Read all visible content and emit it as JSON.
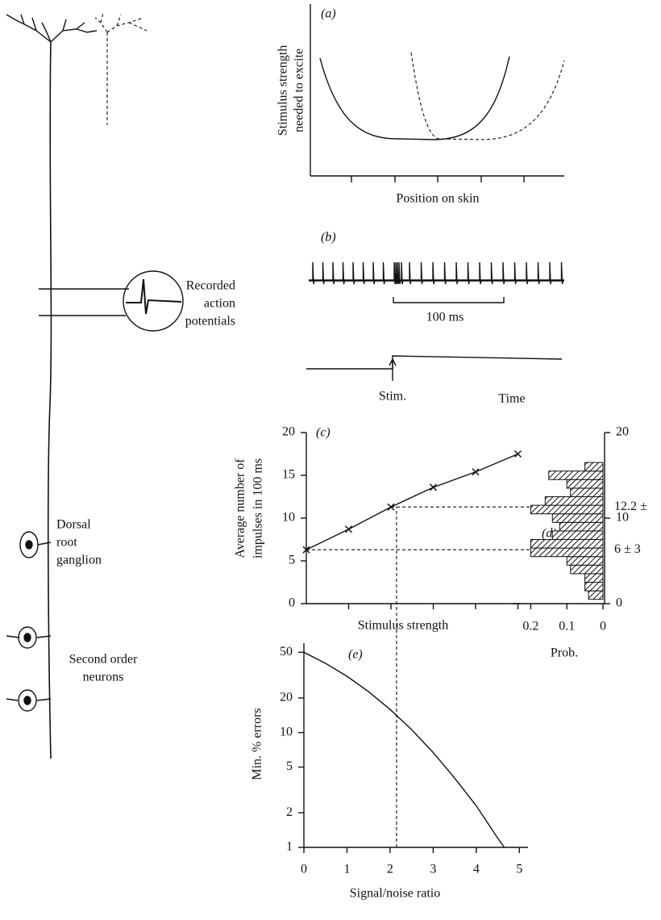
{
  "diagram": {
    "labels": [
      {
        "lines": [
          "Dorsal",
          "root",
          "ganglion"
        ]
      },
      {
        "lines": [
          "Second order",
          "neurons"
        ]
      }
    ]
  },
  "chart_data": [
    {
      "type": "curves",
      "label": "(a)",
      "y_label": [
        "Stimulus strength",
        "needed to excite"
      ],
      "x_label": "Position on skin"
    },
    {
      "type": "spikes",
      "label": "(b)",
      "y_label": [
        "Recorded",
        "action",
        "potentials"
      ],
      "scale_label": "100 ms",
      "stimulus_label": "Stim.",
      "x_label": "Time"
    },
    {
      "type": "line",
      "label": "(c)",
      "y_label": [
        "Average number of",
        "impulses in 100 ms"
      ],
      "x_label": "Stimulus strength",
      "categories": [
        null,
        null,
        null,
        null,
        null,
        null
      ],
      "values": [
        6.3,
        8.7,
        11.3,
        13.6,
        15.4,
        17.5
      ],
      "ylim": [
        0,
        20
      ],
      "yticks": [
        0,
        5,
        10,
        15,
        20
      ],
      "marker": "x",
      "color": "#111111"
    },
    {
      "type": "histogram",
      "label": "(d)",
      "x_label": "Prob.",
      "orientation": "horizontal",
      "bins": [
        0.5,
        1.5,
        2.5,
        3.5,
        4.5,
        5.5,
        6.5,
        7.5,
        8.5,
        9.5,
        10.5,
        11.5,
        12.5,
        13.5,
        14.5,
        15.5,
        16.5
      ],
      "values": [
        0.04,
        0.05,
        0.05,
        0.09,
        0.1,
        0.2,
        0.2,
        0.14,
        0.12,
        0.14,
        0.2,
        0.16,
        0.09,
        0.1,
        0.15,
        0.05
      ],
      "xlim": [
        0.25,
        0
      ],
      "xticks": [
        0.2,
        0.1,
        0
      ],
      "ylim": [
        0,
        20
      ],
      "yticks": [
        0,
        10,
        20
      ],
      "annotations": [
        "12.2 ±",
        "6 ± 3"
      ],
      "color": "#111111"
    },
    {
      "type": "line",
      "label": "(e)",
      "y_label": [
        "Min. % errors"
      ],
      "x_label": "Signal/noise ratio",
      "x": [
        0,
        0.5,
        1,
        1.5,
        2,
        2.5,
        3,
        3.5,
        4,
        4.5,
        4.65
      ],
      "values": [
        50,
        40.1,
        30.9,
        22.7,
        15.9,
        10.6,
        6.7,
        4.0,
        2.3,
        1.2,
        1.0
      ],
      "xlim": [
        0,
        5.2
      ],
      "xticks": [
        0,
        1,
        2,
        3,
        4,
        5
      ],
      "ylim": [
        1,
        60
      ],
      "yticks": [
        1,
        2,
        5,
        10,
        20,
        50
      ],
      "log_y": true,
      "reference_x": 2.15,
      "color": "#111111"
    }
  ]
}
